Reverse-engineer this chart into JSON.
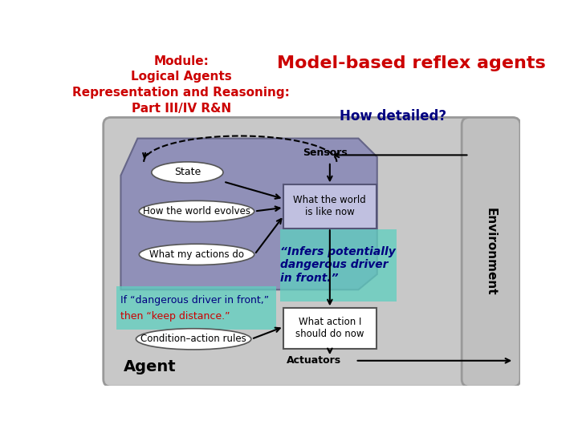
{
  "title_left": "Module:\nLogical Agents\nRepresentation and Reasoning:\nPart III/IV R&N",
  "title_right": "Model-based reflex agents",
  "subtitle_right": "How detailed?",
  "bg_color": "#ffffff",
  "state_label": "State",
  "evolves_label": "How the world evolves",
  "actions_label": "What my actions do",
  "world_label": "What the world\nis like now",
  "action_label": "What action I\nshould do now",
  "sensors_label": "Sensors",
  "actuators_label": "Actuators",
  "rules_label": "Condition–action rules",
  "agent_label": "Agent",
  "env_label": "Environment",
  "if_text_blue": "If “dangerous driver in front,”",
  "then_text_red": "then “keep distance.”",
  "infers_text": "“Infers potentially\ndangerous driver\nin front.”",
  "title_left_color": "#cc0000",
  "title_right_color": "#cc0000",
  "subtitle_color": "#000080",
  "infers_color": "#000080",
  "if_color": "#000080",
  "then_color": "#cc0000",
  "hex_color": "#9090b8",
  "teal_color": "#5ecfbf",
  "outer_gray": "#c8c8c8",
  "env_gray": "#c0c0c0",
  "world_box_color": "#c0c0e0",
  "action_box_color": "#ffffff"
}
